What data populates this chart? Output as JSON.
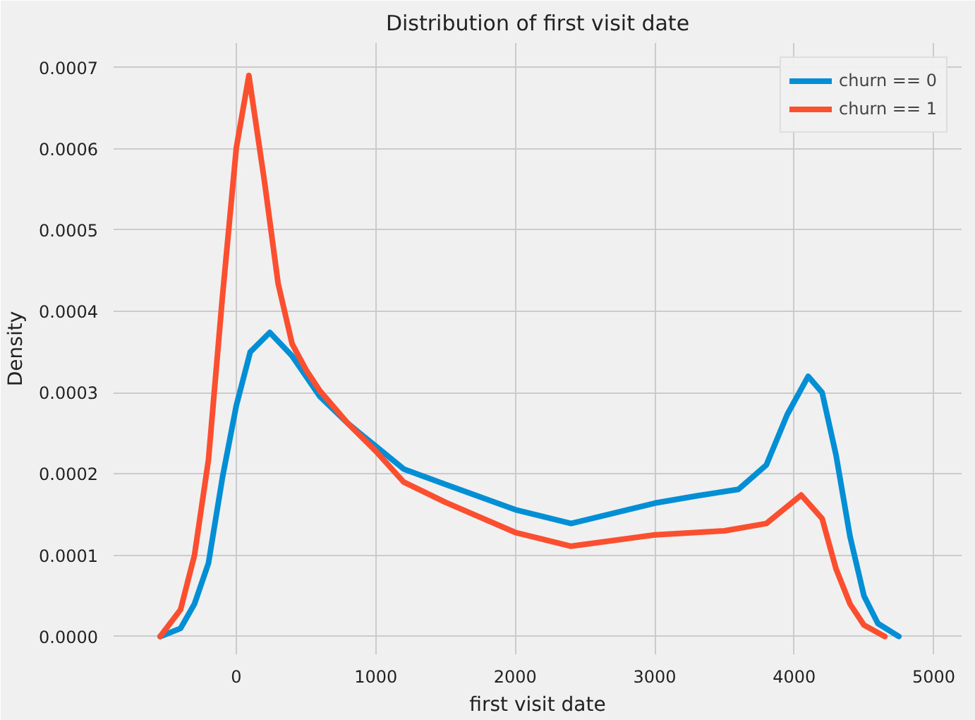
{
  "chart_data": {
    "type": "line",
    "title": "Distribution of first visit date",
    "xlabel": "first visit date",
    "ylabel": "Density",
    "xlim": [
      -880,
      5200
    ],
    "xticks": [
      0,
      1000,
      2000,
      3000,
      4000,
      5000
    ],
    "ylim": [
      -2.2e-05,
      0.00073
    ],
    "yticks": [
      {
        "value": 0,
        "label": "0.0000"
      },
      {
        "value": 0.0001,
        "label": "0.0001"
      },
      {
        "value": 0.0002,
        "label": "0.0002"
      },
      {
        "value": 0.0003,
        "label": "0.0003"
      },
      {
        "value": 0.0004,
        "label": "0.0004"
      },
      {
        "value": 0.0005,
        "label": "0.0005"
      },
      {
        "value": 0.0006,
        "label": "0.0006"
      },
      {
        "value": 0.0007,
        "label": "0.0007"
      }
    ],
    "grid": true,
    "legend": "top right",
    "marker": "none",
    "line_style": "solid",
    "series": [
      {
        "name": "churn == 0",
        "color": "#008fd5",
        "x": [
          -546,
          -400,
          -300,
          -200,
          -100,
          0,
          100,
          240,
          400,
          600,
          800,
          1000,
          1200,
          1500,
          2000,
          2400,
          3000,
          3300,
          3600,
          3800,
          3950,
          4100,
          4200,
          4300,
          4400,
          4500,
          4600,
          4750
        ],
        "values": [
          0,
          1e-05,
          4e-05,
          9e-05,
          0.000195,
          0.000284,
          0.00035,
          0.000374,
          0.000345,
          0.000295,
          0.000262,
          0.000234,
          0.000206,
          0.000187,
          0.000156,
          0.000139,
          0.000164,
          0.000173,
          0.000181,
          0.000211,
          0.000273,
          0.00032,
          0.0003,
          0.000223,
          0.000123,
          5e-05,
          1.6e-05,
          0
        ]
      },
      {
        "name": "churn == 1",
        "color": "#fc4f30",
        "x": [
          -546,
          -400,
          -300,
          -200,
          -100,
          0,
          90,
          200,
          300,
          400,
          500,
          600,
          800,
          1000,
          1200,
          1500,
          2000,
          2400,
          3000,
          3500,
          3800,
          4050,
          4200,
          4300,
          4400,
          4500,
          4650
        ],
        "values": [
          0,
          3.3e-05,
          0.0001,
          0.000217,
          0.000417,
          0.000601,
          0.00069,
          0.000562,
          0.000434,
          0.00036,
          0.000328,
          0.000302,
          0.000262,
          0.000228,
          0.00019,
          0.000165,
          0.000128,
          0.000111,
          0.000125,
          0.00013,
          0.000139,
          0.000174,
          0.000145,
          8.3e-05,
          4e-05,
          1.4e-05,
          0
        ]
      }
    ]
  }
}
